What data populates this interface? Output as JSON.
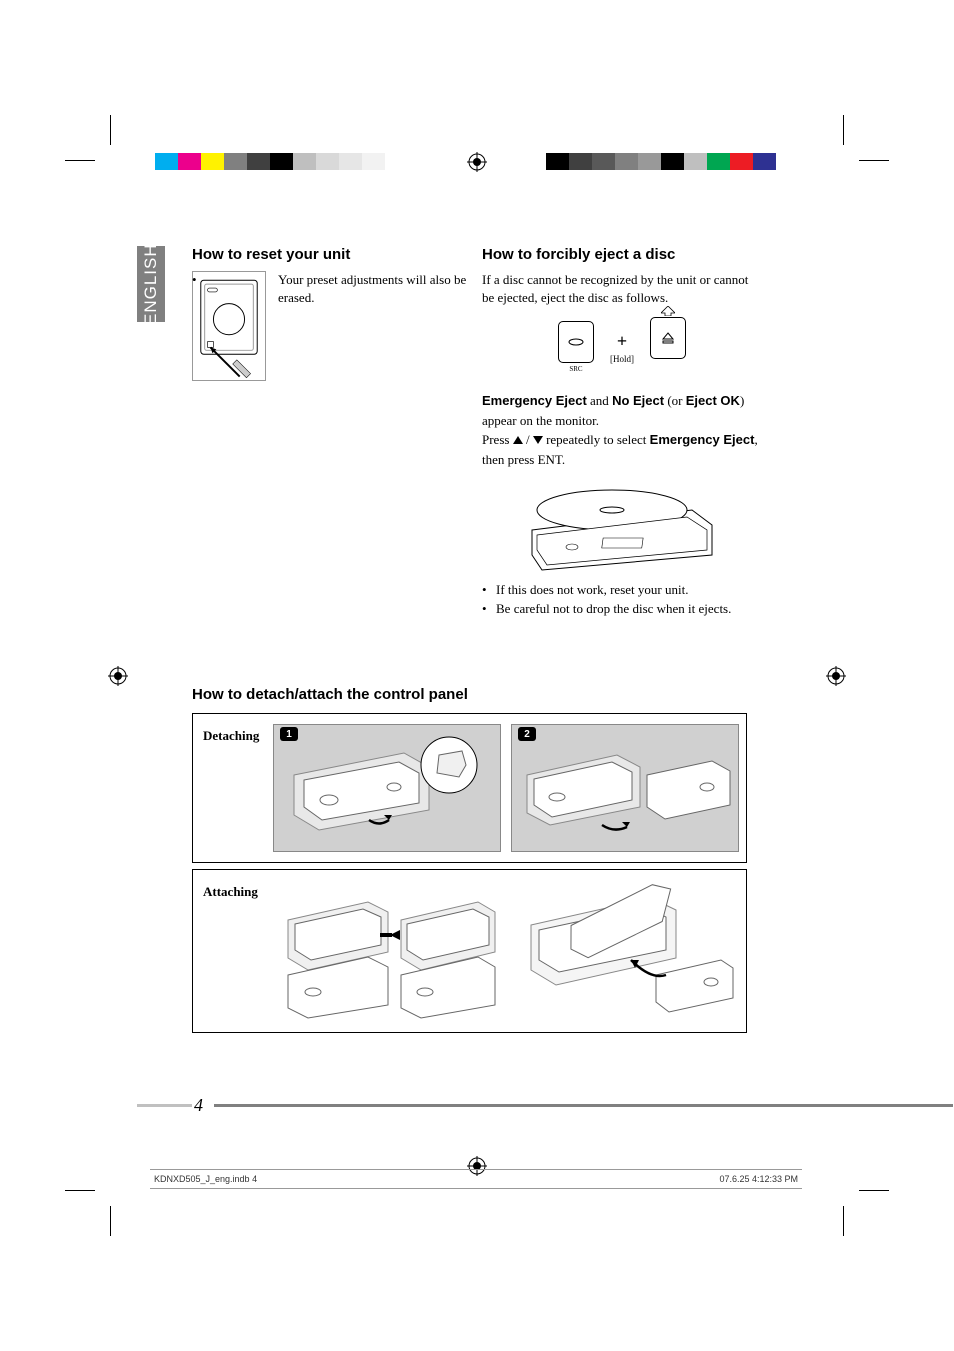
{
  "lang_tab": "ENGLISH",
  "reset": {
    "heading": "How to reset your unit",
    "bullet": "Your preset adjustments will also be erased."
  },
  "eject": {
    "heading": "How to forcibly eject a disc",
    "intro": "If a disc cannot be recognized by the unit or cannot be ejected, eject the disc as follows.",
    "hold_label": "[Hold]",
    "text1_bold1": "Emergency Eject",
    "text1_mid1": " and ",
    "text1_bold2": "No Eject",
    "text1_mid2": " (or ",
    "text1_bold3": "Eject OK",
    "text1_mid3": ") appear on the monitor.",
    "text2_pre": "Press ",
    "text2_mid": " repeatedly to select ",
    "text2_bold": "Emergency Eject",
    "text2_post": ", then press ENT.",
    "bullet1": "If this does not work, reset your unit.",
    "bullet2": "Be careful not to drop the disc when it ejects."
  },
  "detach": {
    "heading": "How to detach/attach the control panel",
    "row1_label": "Detaching",
    "row2_label": "Attaching",
    "step1": "1",
    "step2": "2"
  },
  "page_number": "4",
  "footer": {
    "file": "KDNXD505_J_eng.indb   4",
    "stamp": "07.6.25   4:12:33 PM"
  },
  "colorbar_left": [
    "#00aeef",
    "#ec008c",
    "#fff200",
    "#808080",
    "#404040",
    "#000000",
    "#bfbfbf",
    "#d9d9d9",
    "#e6e6e6",
    "#f2f2f2",
    "#ffffff"
  ],
  "colorbar_right": [
    "#000000",
    "#404040",
    "#595959",
    "#808080",
    "#999999",
    "#000000",
    "#bfbfbf",
    "#00a651",
    "#ed1c24",
    "#2e3192",
    "#ffffff"
  ]
}
